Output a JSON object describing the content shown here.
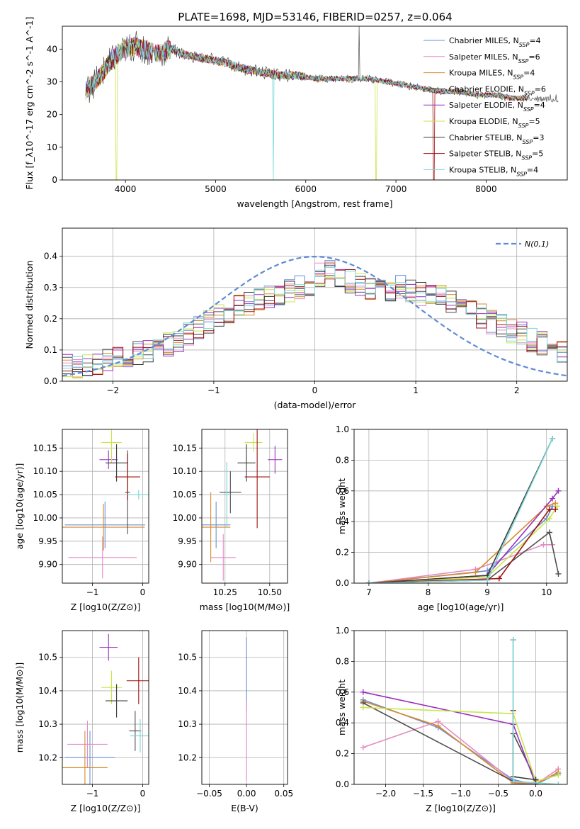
{
  "title": "PLATE=1698, MJD=53146, FIBERID=0257, z=0.064",
  "colors": [
    "#6b8fd6",
    "#e58ac3",
    "#d98a2b",
    "#4f4f4f",
    "#9a2fc0",
    "#c8e64b",
    "#3a3a3a",
    "#a01010",
    "#7ad6d8"
  ],
  "legend": [
    "Chabrier MILES, N_SSP=4",
    "Salpeter MILES, N_SSP=6",
    "Kroupa MILES, N_SSP=4",
    "Chabrier ELODIE, N_SSP=6",
    "Salpeter ELODIE, N_SSP=4",
    "Kroupa ELODIE, N_SSP=5",
    "Chabrier STELIB, N_SSP=3",
    "Salpeter STELIB, N_SSP=5",
    "Kroupa STELIB, N_SSP=4"
  ],
  "chart_data": [
    {
      "id": "spectrum",
      "type": "line",
      "xlabel": "wavelength [Angstrom, rest frame]",
      "ylabel": "Flux [f_λ10^-17 erg cm^-2 s^-1 A^-1]",
      "xlim": [
        3300,
        8900
      ],
      "ylim": [
        0,
        47
      ],
      "xticks": [
        4000,
        5000,
        6000,
        7000,
        8000
      ],
      "yticks": [
        0,
        10,
        20,
        30,
        40
      ],
      "x": [
        3550,
        3700,
        3800,
        3900,
        4000,
        4100,
        4200,
        4300,
        4400,
        4500,
        4700,
        4900,
        5100,
        5300,
        5500,
        5700,
        5900,
        6100,
        6300,
        6500,
        6700,
        6900,
        7100,
        7300,
        7500,
        7700,
        7900,
        8100,
        8300,
        8450
      ],
      "y": [
        27,
        31,
        35,
        38,
        40,
        41,
        40,
        39,
        39,
        40,
        38,
        37,
        36,
        34,
        33,
        32,
        32,
        31,
        31,
        31,
        31,
        30,
        29,
        28,
        27,
        27,
        26,
        26,
        25,
        25
      ]
    },
    {
      "id": "residuals",
      "type": "histogram",
      "xlabel": "(data-model)/error",
      "ylabel": "Normed distribution",
      "xlim": [
        -2.5,
        2.5
      ],
      "ylim": [
        0,
        0.49
      ],
      "xticks": [
        -2,
        -1,
        0,
        1,
        2
      ],
      "yticks": [
        0.0,
        0.1,
        0.2,
        0.3,
        0.4
      ],
      "bin_width": 0.1,
      "bin_start": -2.5,
      "series_values": [
        0.05,
        0.04,
        0.05,
        0.06,
        0.07,
        0.07,
        0.08,
        0.09,
        0.1,
        0.11,
        0.12,
        0.13,
        0.15,
        0.17,
        0.19,
        0.21,
        0.22,
        0.24,
        0.25,
        0.26,
        0.27,
        0.28,
        0.29,
        0.3,
        0.31,
        0.34,
        0.35,
        0.33,
        0.32,
        0.31,
        0.3,
        0.32,
        0.29,
        0.3,
        0.29,
        0.28,
        0.27,
        0.27,
        0.26,
        0.24,
        0.23,
        0.21,
        0.19,
        0.18,
        0.16,
        0.15,
        0.13,
        0.12,
        0.11,
        0.1
      ],
      "gaussian_label": "N(0,1)"
    },
    {
      "id": "age_vs_Z",
      "type": "scatter",
      "xlabel": "Z [log10(Z/Z⊙)]",
      "ylabel": "age  [log10(age/yr)]",
      "xlim": [
        -1.6,
        0.12
      ],
      "ylim": [
        9.86,
        10.19
      ],
      "xticks": [
        -1,
        0
      ],
      "yticks": [
        9.9,
        9.95,
        10.0,
        10.05,
        10.1,
        10.15
      ],
      "points": [
        {
          "x": -0.75,
          "y": 9.985,
          "xerr": 0.8,
          "yerr": 0.05
        },
        {
          "x": -0.8,
          "y": 9.915,
          "xerr": 0.68,
          "yerr": 0.045
        },
        {
          "x": -0.78,
          "y": 9.98,
          "xerr": 0.82,
          "yerr": 0.05
        },
        {
          "x": -0.3,
          "y": 10.055,
          "xerr": 0.05,
          "yerr": 0.09
        },
        {
          "x": -0.68,
          "y": 10.125,
          "xerr": 0.18,
          "yerr": 0.02
        },
        {
          "x": -0.62,
          "y": 10.162,
          "xerr": 0.2,
          "yerr": 0.045
        },
        {
          "x": -0.52,
          "y": 10.118,
          "xerr": 0.22,
          "yerr": 0.04
        },
        {
          "x": -0.3,
          "y": 10.088,
          "xerr": 0.25,
          "yerr": 0.05
        },
        {
          "x": -0.08,
          "y": 10.05,
          "xerr": 0.22,
          "yerr": 0.01
        }
      ]
    },
    {
      "id": "age_vs_mass",
      "type": "scatter",
      "xlabel": "mass [log10(M/M⊙)]",
      "ylabel": "",
      "xlim": [
        10.12,
        10.6
      ],
      "ylim": [
        9.86,
        10.19
      ],
      "xticks": [
        10.25,
        10.5
      ],
      "yticks": [
        9.9,
        9.95,
        10.0,
        10.05,
        10.1,
        10.15
      ],
      "points": [
        {
          "x": 10.2,
          "y": 9.985,
          "xerr": 0.08,
          "yerr": 0.05
        },
        {
          "x": 10.24,
          "y": 9.915,
          "xerr": 0.07,
          "yerr": 0.05
        },
        {
          "x": 10.17,
          "y": 9.98,
          "xerr": 0.11,
          "yerr": 0.075
        },
        {
          "x": 10.28,
          "y": 10.055,
          "xerr": 0.06,
          "yerr": 0.045
        },
        {
          "x": 10.53,
          "y": 10.125,
          "xerr": 0.04,
          "yerr": 0.03
        },
        {
          "x": 10.41,
          "y": 10.162,
          "xerr": 0.05,
          "yerr": 0.02
        },
        {
          "x": 10.37,
          "y": 10.118,
          "xerr": 0.05,
          "yerr": 0.04
        },
        {
          "x": 10.43,
          "y": 10.088,
          "xerr": 0.07,
          "yerr": 0.11
        },
        {
          "x": 10.26,
          "y": 10.05,
          "xerr": 0.02,
          "yerr": 0.07
        }
      ]
    },
    {
      "id": "mass_weight_vs_age",
      "type": "line",
      "xlabel": "age  [log10(age/yr)]",
      "ylabel": "mass weight",
      "xlim": [
        6.75,
        10.35
      ],
      "ylim": [
        0,
        1.0
      ],
      "xticks": [
        7,
        8,
        9,
        10
      ],
      "yticks": [
        0.0,
        0.2,
        0.4,
        0.6,
        0.8,
        1.0
      ],
      "series": [
        {
          "x": [
            7.0,
            9.0,
            10.0,
            10.1
          ],
          "y": [
            0.0,
            0.08,
            0.42,
            0.5
          ]
        },
        {
          "x": [
            7.0,
            8.8,
            9.95,
            10.1
          ],
          "y": [
            0.0,
            0.09,
            0.25,
            0.25
          ]
        },
        {
          "x": [
            7.0,
            8.8,
            10.0,
            10.15
          ],
          "y": [
            0.0,
            0.07,
            0.5,
            0.52
          ]
        },
        {
          "x": [
            7.0,
            9.0,
            10.05,
            10.2
          ],
          "y": [
            0.0,
            0.02,
            0.33,
            0.06
          ]
        },
        {
          "x": [
            7.0,
            9.0,
            10.1,
            10.2
          ],
          "y": [
            0.0,
            0.05,
            0.55,
            0.6
          ]
        },
        {
          "x": [
            7.0,
            9.0,
            10.05,
            10.18
          ],
          "y": [
            0.0,
            0.04,
            0.42,
            0.5
          ]
        },
        {
          "x": [
            7.0,
            9.0,
            10.1
          ],
          "y": [
            0.0,
            0.05,
            0.94
          ]
        },
        {
          "x": [
            7.0,
            9.2,
            10.05,
            10.15
          ],
          "y": [
            0.0,
            0.03,
            0.48,
            0.48
          ]
        },
        {
          "x": [
            7.0,
            9.0,
            10.1
          ],
          "y": [
            0.0,
            0.02,
            0.94
          ]
        }
      ]
    },
    {
      "id": "mass_vs_Z",
      "type": "scatter",
      "xlabel": "Z [log10(Z/Z⊙)]",
      "ylabel": "mass [log10(M/M⊙)]",
      "xlim": [
        -1.6,
        0.12
      ],
      "ylim": [
        10.12,
        10.58
      ],
      "xticks": [
        -1,
        0
      ],
      "yticks": [
        10.2,
        10.3,
        10.4,
        10.5
      ],
      "points": [
        {
          "x": -1.05,
          "y": 10.2,
          "xerr": 0.5,
          "yerr": 0.08
        },
        {
          "x": -1.1,
          "y": 10.24,
          "xerr": 0.4,
          "yerr": 0.07
        },
        {
          "x": -1.15,
          "y": 10.17,
          "xerr": 0.45,
          "yerr": 0.11
        },
        {
          "x": -0.15,
          "y": 10.28,
          "xerr": 0.12,
          "yerr": 0.06
        },
        {
          "x": -0.68,
          "y": 10.53,
          "xerr": 0.18,
          "yerr": 0.04
        },
        {
          "x": -0.62,
          "y": 10.41,
          "xerr": 0.2,
          "yerr": 0.05
        },
        {
          "x": -0.52,
          "y": 10.37,
          "xerr": 0.22,
          "yerr": 0.05
        },
        {
          "x": -0.08,
          "y": 10.43,
          "xerr": 0.24,
          "yerr": 0.07
        },
        {
          "x": -0.05,
          "y": 10.265,
          "xerr": 0.2,
          "yerr": 0.05
        }
      ]
    },
    {
      "id": "mass_vs_EBV",
      "type": "scatter",
      "xlabel": "E(B-V)",
      "ylabel": "",
      "xlim": [
        -0.06,
        0.055
      ],
      "ylim": [
        10.12,
        10.58
      ],
      "xticks": [
        -0.05,
        0.0,
        0.05
      ],
      "yticks": [
        10.2,
        10.3,
        10.4,
        10.5
      ],
      "points": [
        {
          "x": 0.0,
          "y": 10.45,
          "xerr": 0.0,
          "yerr": 0.11
        },
        {
          "x": 0.0,
          "y": 10.25,
          "xerr": 0.0,
          "yerr": 0.12
        }
      ]
    },
    {
      "id": "mass_weight_vs_Z",
      "type": "line",
      "xlabel": "Z [log10(Z/Z⊙)]",
      "ylabel": "mass weight",
      "xlim": [
        -2.42,
        0.42
      ],
      "ylim": [
        0,
        1.0
      ],
      "xticks": [
        -2.0,
        -1.5,
        -1.0,
        -0.5,
        0.0
      ],
      "yticks": [
        0.0,
        0.2,
        0.4,
        0.6,
        0.8,
        1.0
      ],
      "series": [
        {
          "x": [
            -2.3,
            -1.3,
            -0.3,
            0.0,
            0.3
          ],
          "y": [
            0.55,
            0.37,
            0.03,
            0.0,
            0.07
          ]
        },
        {
          "x": [
            -2.3,
            -1.3,
            -0.3,
            0.0,
            0.3
          ],
          "y": [
            0.24,
            0.41,
            0.02,
            0.0,
            0.1
          ]
        },
        {
          "x": [
            -2.3,
            -1.3,
            -0.3,
            0.0,
            0.3
          ],
          "y": [
            0.54,
            0.38,
            0.01,
            0.0,
            0.08
          ]
        },
        {
          "x": [
            -2.3,
            -0.3,
            -0.3,
            0.0
          ],
          "y": [
            0.53,
            0.02,
            0.33,
            0.03
          ]
        },
        {
          "x": [
            -2.3,
            -0.3,
            0.0
          ],
          "y": [
            0.6,
            0.39,
            0.0
          ]
        },
        {
          "x": [
            -2.3,
            -0.3,
            0.0,
            0.3
          ],
          "y": [
            0.5,
            0.46,
            0.02,
            0.06
          ]
        },
        {
          "x": [
            -0.3,
            -0.3,
            0.0
          ],
          "y": [
            0.94,
            0.05,
            0.03
          ]
        },
        {
          "x": [
            -0.3,
            -0.3,
            0.0
          ],
          "y": [
            0.48,
            0.0,
            0.0
          ]
        },
        {
          "x": [
            -0.3,
            -0.3,
            0.3
          ],
          "y": [
            0.94,
            0.02,
            0.0
          ]
        }
      ]
    }
  ]
}
